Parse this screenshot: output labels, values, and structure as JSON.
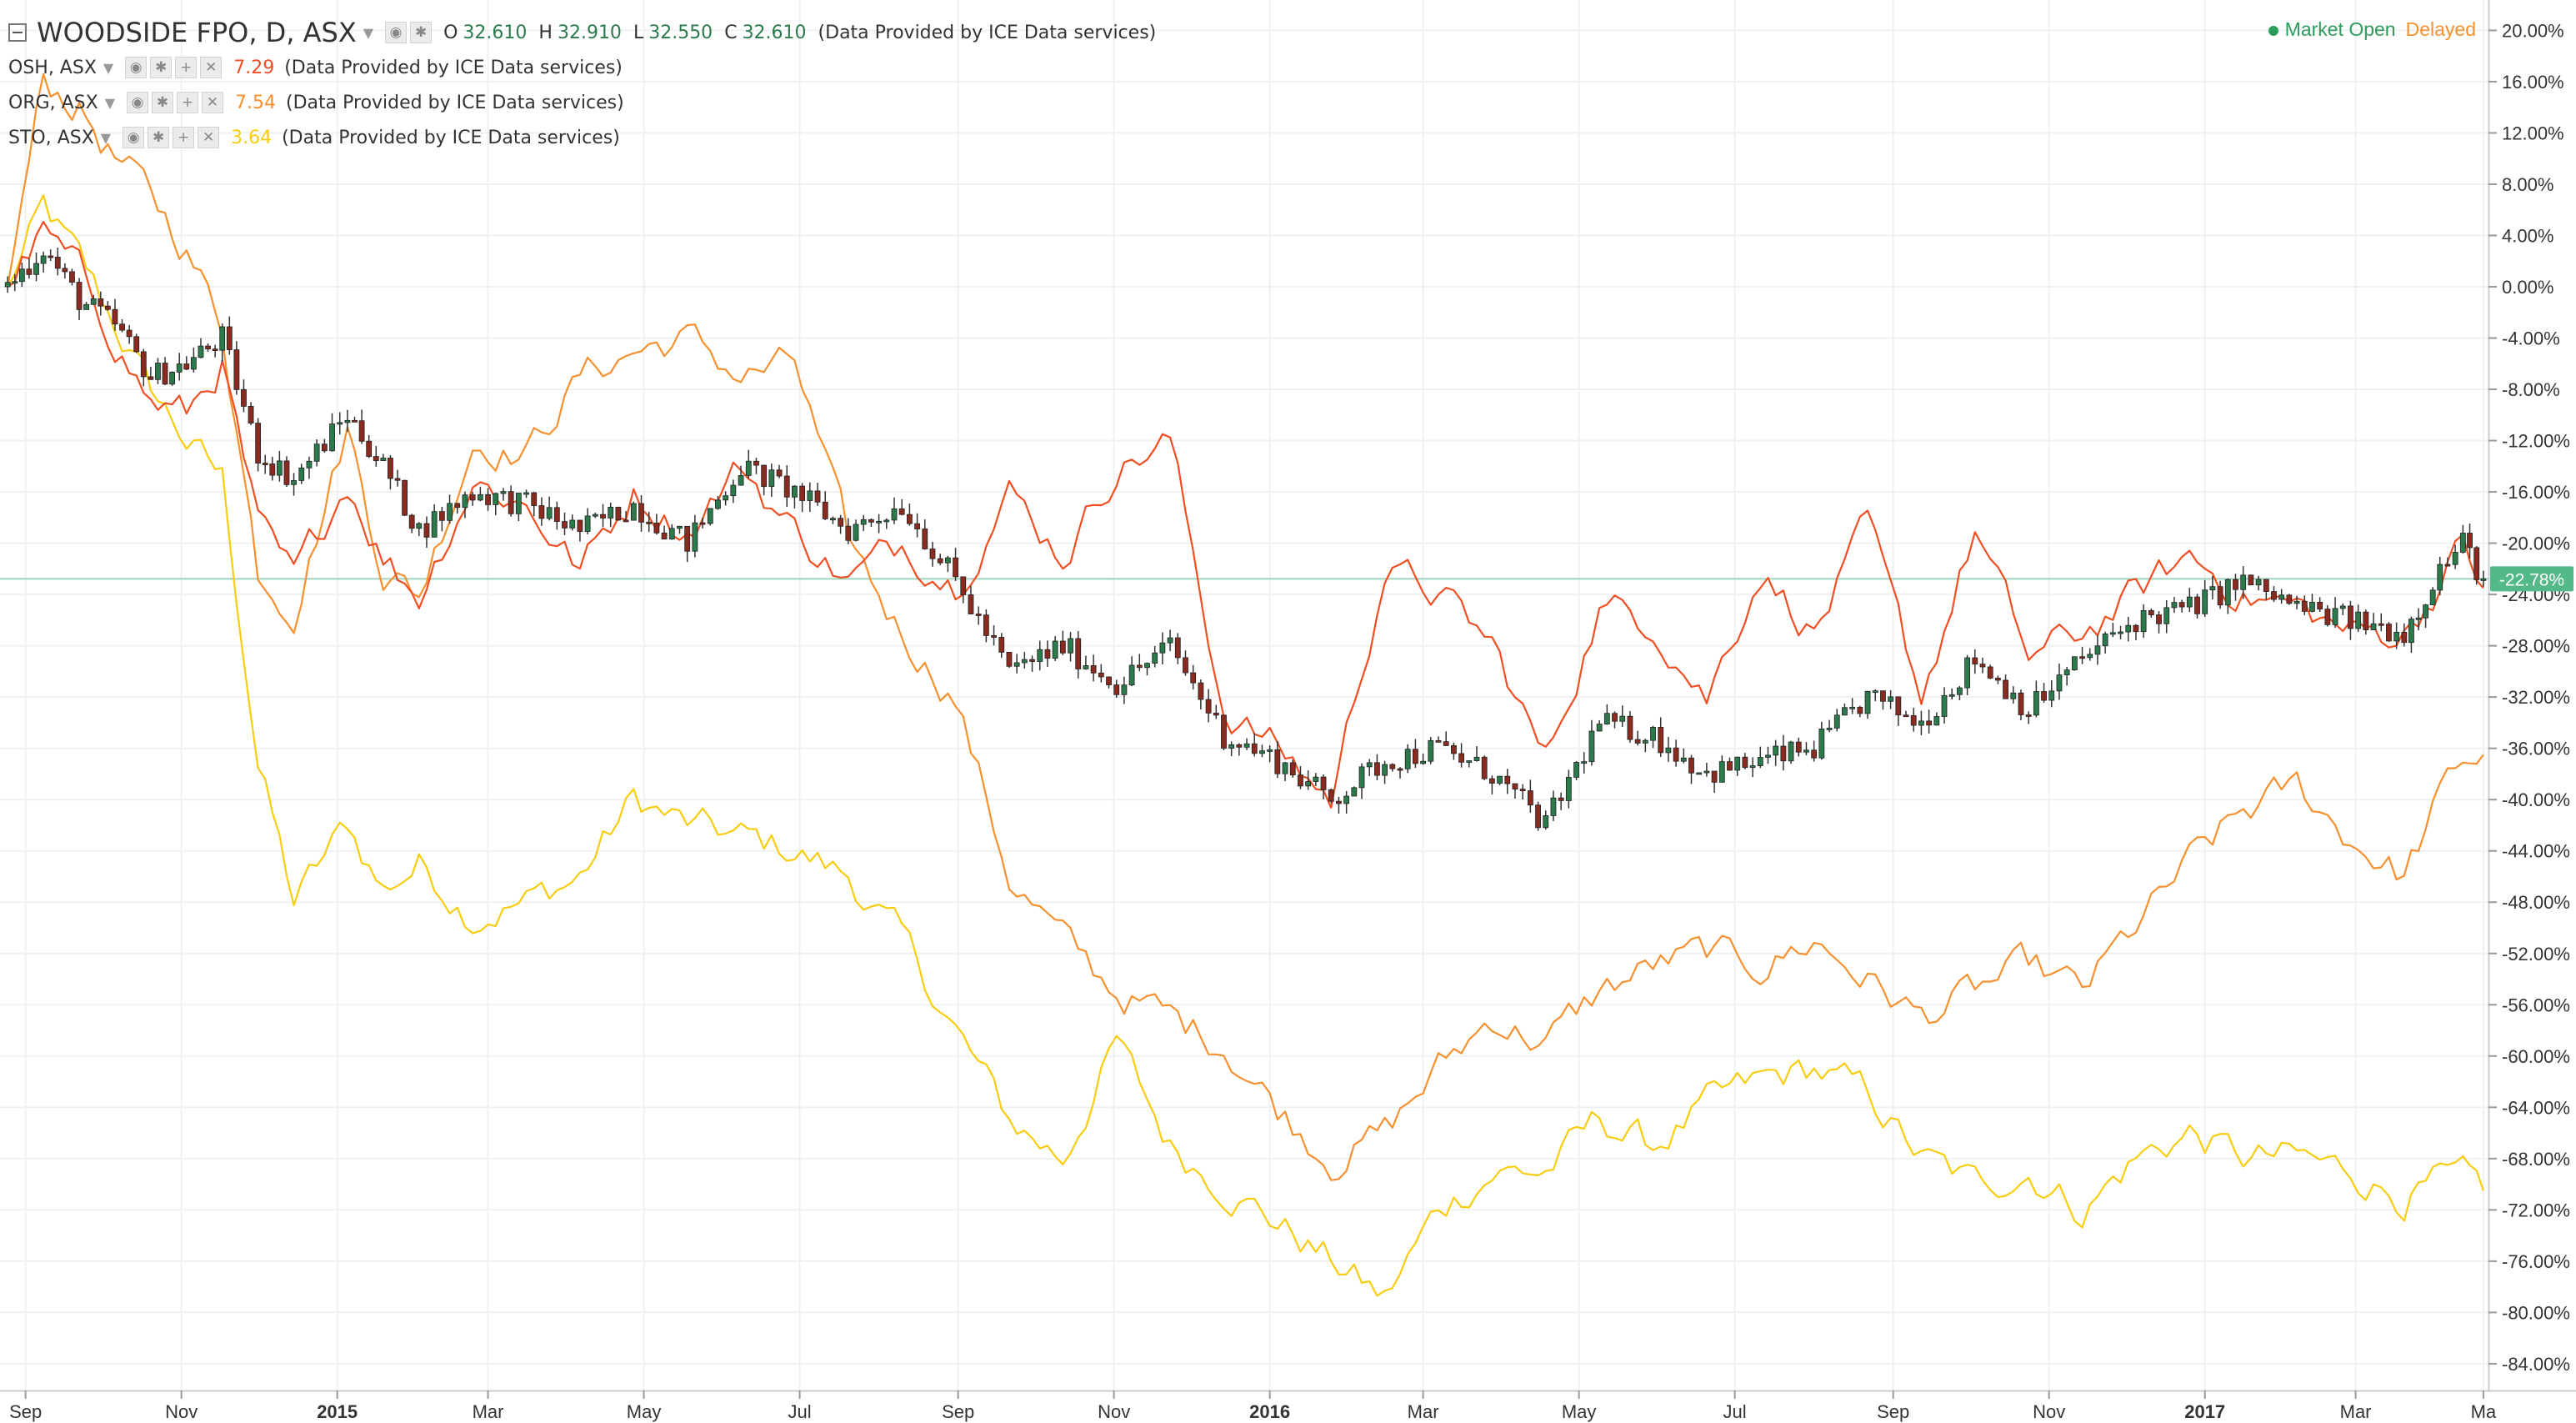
{
  "window": {
    "title": "WOODSIDE FPO, D, ASX"
  },
  "main_series": {
    "symbol": "WOODSIDE FPO, D, ASX",
    "ohlc": [
      {
        "label": "O",
        "value": "32.610"
      },
      {
        "label": "H",
        "value": "32.910"
      },
      {
        "label": "L",
        "value": "32.550"
      },
      {
        "label": "C",
        "value": "32.610"
      }
    ],
    "provider": "(Data Provided by ICE Data services)"
  },
  "compare": [
    {
      "symbol": "OSH, ASX",
      "value": "7.29",
      "color": "#f04e23",
      "provider": "(Data Provided by ICE Data services)"
    },
    {
      "symbol": "ORG, ASX",
      "value": "7.54",
      "color": "#f7902f",
      "provider": "(Data Provided by ICE Data services)"
    },
    {
      "symbol": "STO, ASX",
      "value": "3.64",
      "color": "#f8cd0f",
      "provider": "(Data Provided by ICE Data services)"
    }
  ],
  "status": {
    "market": "Market Open",
    "delay": "Delayed"
  },
  "icons": {
    "collapse": "collapse-icon",
    "eye": "eye-icon",
    "settings": "gear-icon",
    "add": "plus-icon",
    "close": "close-icon",
    "caret": "caret-down-icon"
  },
  "colors": {
    "up": "#2b7a4b",
    "down": "#8b2a1f",
    "badge": "#53b987",
    "grid": "#eef1f4",
    "axis_text": "#333333"
  },
  "chart_data": {
    "type": "line",
    "y_unit": "percent change",
    "ylim": [
      -86,
      22
    ],
    "y_ticks": [
      "20.00%",
      "16.00%",
      "12.00%",
      "8.00%",
      "4.00%",
      "0.00%",
      "-4.00%",
      "-8.00%",
      "-12.00%",
      "-16.00%",
      "-20.00%",
      "-24.00%",
      "-28.00%",
      "-32.00%",
      "-36.00%",
      "-40.00%",
      "-44.00%",
      "-48.00%",
      "-52.00%",
      "-56.00%",
      "-60.00%",
      "-64.00%",
      "-68.00%",
      "-72.00%",
      "-76.00%",
      "-80.00%",
      "-84.00%"
    ],
    "x_range": [
      "2014-08-22",
      "2017-04-22"
    ],
    "x_ticks": [
      {
        "label": "Sep",
        "date": "2014-09-01",
        "bold": false
      },
      {
        "label": "Nov",
        "date": "2014-11-01",
        "bold": false
      },
      {
        "label": "2015",
        "date": "2015-01-01",
        "bold": true
      },
      {
        "label": "Mar",
        "date": "2015-03-01",
        "bold": false
      },
      {
        "label": "May",
        "date": "2015-05-01",
        "bold": false
      },
      {
        "label": "Jul",
        "date": "2015-07-01",
        "bold": false
      },
      {
        "label": "Sep",
        "date": "2015-09-01",
        "bold": false
      },
      {
        "label": "Nov",
        "date": "2015-11-01",
        "bold": false
      },
      {
        "label": "2016",
        "date": "2016-01-01",
        "bold": true
      },
      {
        "label": "Mar",
        "date": "2016-03-01",
        "bold": false
      },
      {
        "label": "May",
        "date": "2016-05-01",
        "bold": false
      },
      {
        "label": "Jul",
        "date": "2016-07-01",
        "bold": false
      },
      {
        "label": "Sep",
        "date": "2016-09-01",
        "bold": false
      },
      {
        "label": "Nov",
        "date": "2016-11-01",
        "bold": false
      },
      {
        "label": "2017",
        "date": "2017-01-01",
        "bold": true
      },
      {
        "label": "Mar",
        "date": "2017-03-01",
        "bold": false
      },
      {
        "label": "Ma",
        "date": "2017-04-20",
        "bold": false
      }
    ],
    "current_badge": {
      "value": -22.78,
      "label": "-22.78%"
    },
    "series": [
      {
        "name": "WOODSIDE FPO",
        "style": "candles",
        "points": [
          [
            "2014-08-25",
            0
          ],
          [
            "2014-09-08",
            3
          ],
          [
            "2014-09-22",
            -1
          ],
          [
            "2014-10-06",
            -3
          ],
          [
            "2014-10-20",
            -7
          ],
          [
            "2014-11-03",
            -6
          ],
          [
            "2014-11-17",
            -4
          ],
          [
            "2014-12-01",
            -13
          ],
          [
            "2014-12-15",
            -15
          ],
          [
            "2015-01-05",
            -10
          ],
          [
            "2015-01-19",
            -14
          ],
          [
            "2015-02-02",
            -19
          ],
          [
            "2015-02-23",
            -16
          ],
          [
            "2015-03-16",
            -17
          ],
          [
            "2015-04-06",
            -19
          ],
          [
            "2015-04-27",
            -17
          ],
          [
            "2015-05-18",
            -20
          ],
          [
            "2015-06-08",
            -14
          ],
          [
            "2015-06-29",
            -16
          ],
          [
            "2015-07-20",
            -19
          ],
          [
            "2015-08-10",
            -17
          ],
          [
            "2015-08-31",
            -23
          ],
          [
            "2015-09-21",
            -30
          ],
          [
            "2015-10-12",
            -28
          ],
          [
            "2015-11-02",
            -31
          ],
          [
            "2015-11-23",
            -28
          ],
          [
            "2015-12-14",
            -35
          ],
          [
            "2016-01-04",
            -37
          ],
          [
            "2016-01-25",
            -40
          ],
          [
            "2016-02-15",
            -37
          ],
          [
            "2016-03-07",
            -36
          ],
          [
            "2016-03-28",
            -38
          ],
          [
            "2016-04-18",
            -42
          ],
          [
            "2016-05-09",
            -34
          ],
          [
            "2016-05-30",
            -35
          ],
          [
            "2016-06-20",
            -38
          ],
          [
            "2016-07-11",
            -37
          ],
          [
            "2016-08-01",
            -36
          ],
          [
            "2016-08-22",
            -32
          ],
          [
            "2016-09-12",
            -34
          ],
          [
            "2016-10-03",
            -29
          ],
          [
            "2016-10-24",
            -33
          ],
          [
            "2016-11-14",
            -29
          ],
          [
            "2016-12-05",
            -26
          ],
          [
            "2016-12-26",
            -25
          ],
          [
            "2017-01-16",
            -23
          ],
          [
            "2017-02-06",
            -25
          ],
          [
            "2017-02-27",
            -26
          ],
          [
            "2017-03-20",
            -27
          ],
          [
            "2017-04-03",
            -22
          ],
          [
            "2017-04-12",
            -20
          ],
          [
            "2017-04-20",
            -22.78
          ]
        ]
      },
      {
        "name": "OSH",
        "color": "#f04e23",
        "points": [
          [
            "2014-08-25",
            0
          ],
          [
            "2014-09-08",
            4
          ],
          [
            "2014-09-22",
            1
          ],
          [
            "2014-10-06",
            -4
          ],
          [
            "2014-10-20",
            -9
          ],
          [
            "2014-11-03",
            -10
          ],
          [
            "2014-11-17",
            -6
          ],
          [
            "2014-12-01",
            -19
          ],
          [
            "2014-12-15",
            -23
          ],
          [
            "2015-01-05",
            -15
          ],
          [
            "2015-01-19",
            -21
          ],
          [
            "2015-02-02",
            -24
          ],
          [
            "2015-02-23",
            -15
          ],
          [
            "2015-03-16",
            -17
          ],
          [
            "2015-04-06",
            -22
          ],
          [
            "2015-04-27",
            -16
          ],
          [
            "2015-05-18",
            -19
          ],
          [
            "2015-06-08",
            -14
          ],
          [
            "2015-06-29",
            -19
          ],
          [
            "2015-07-20",
            -23
          ],
          [
            "2015-08-10",
            -20
          ],
          [
            "2015-08-31",
            -23
          ],
          [
            "2015-09-21",
            -16
          ],
          [
            "2015-10-12",
            -21
          ],
          [
            "2015-11-02",
            -14
          ],
          [
            "2015-11-23",
            -12
          ],
          [
            "2015-12-14",
            -33
          ],
          [
            "2016-01-04",
            -36
          ],
          [
            "2016-01-25",
            -40
          ],
          [
            "2016-02-15",
            -22
          ],
          [
            "2016-03-07",
            -24
          ],
          [
            "2016-03-28",
            -28
          ],
          [
            "2016-04-18",
            -37
          ],
          [
            "2016-05-09",
            -25
          ],
          [
            "2016-05-30",
            -26
          ],
          [
            "2016-06-20",
            -32
          ],
          [
            "2016-07-11",
            -22
          ],
          [
            "2016-08-01",
            -27
          ],
          [
            "2016-08-22",
            -19
          ],
          [
            "2016-09-12",
            -32
          ],
          [
            "2016-10-03",
            -19
          ],
          [
            "2016-10-24",
            -29
          ],
          [
            "2016-11-14",
            -27
          ],
          [
            "2016-12-05",
            -24
          ],
          [
            "2016-12-26",
            -21
          ],
          [
            "2017-01-16",
            -24
          ],
          [
            "2017-02-06",
            -25
          ],
          [
            "2017-02-27",
            -27
          ],
          [
            "2017-03-20",
            -27
          ],
          [
            "2017-04-03",
            -23
          ],
          [
            "2017-04-12",
            -20
          ],
          [
            "2017-04-20",
            -23.5
          ]
        ]
      },
      {
        "name": "ORG",
        "color": "#f7902f",
        "points": [
          [
            "2014-08-25",
            0
          ],
          [
            "2014-09-08",
            16
          ],
          [
            "2014-09-22",
            14
          ],
          [
            "2014-10-06",
            10
          ],
          [
            "2014-10-20",
            7
          ],
          [
            "2014-11-03",
            3
          ],
          [
            "2014-11-17",
            -3
          ],
          [
            "2014-12-01",
            -22
          ],
          [
            "2014-12-15",
            -25
          ],
          [
            "2015-01-05",
            -11
          ],
          [
            "2015-01-19",
            -22
          ],
          [
            "2015-02-02",
            -24
          ],
          [
            "2015-02-23",
            -12
          ],
          [
            "2015-03-16",
            -13
          ],
          [
            "2015-04-06",
            -7
          ],
          [
            "2015-04-27",
            -5
          ],
          [
            "2015-05-18",
            -4
          ],
          [
            "2015-06-08",
            -7
          ],
          [
            "2015-06-29",
            -6
          ],
          [
            "2015-07-20",
            -20
          ],
          [
            "2015-08-10",
            -27
          ],
          [
            "2015-08-31",
            -32
          ],
          [
            "2015-09-21",
            -46
          ],
          [
            "2015-10-12",
            -51
          ],
          [
            "2015-11-02",
            -55
          ],
          [
            "2015-11-23",
            -57
          ],
          [
            "2015-12-14",
            -59
          ],
          [
            "2016-01-04",
            -64
          ],
          [
            "2016-01-25",
            -68
          ],
          [
            "2016-02-15",
            -66
          ],
          [
            "2016-03-07",
            -61
          ],
          [
            "2016-03-28",
            -57
          ],
          [
            "2016-04-18",
            -59
          ],
          [
            "2016-05-09",
            -55
          ],
          [
            "2016-05-30",
            -53
          ],
          [
            "2016-06-20",
            -52
          ],
          [
            "2016-07-11",
            -53
          ],
          [
            "2016-08-01",
            -51
          ],
          [
            "2016-08-22",
            -54
          ],
          [
            "2016-09-12",
            -57
          ],
          [
            "2016-10-03",
            -55
          ],
          [
            "2016-10-24",
            -53
          ],
          [
            "2016-11-14",
            -55
          ],
          [
            "2016-12-05",
            -50
          ],
          [
            "2016-12-26",
            -45
          ],
          [
            "2017-01-16",
            -41
          ],
          [
            "2017-02-06",
            -39
          ],
          [
            "2017-02-27",
            -43
          ],
          [
            "2017-03-20",
            -46
          ],
          [
            "2017-04-03",
            -40
          ],
          [
            "2017-04-12",
            -37
          ],
          [
            "2017-04-20",
            -36.5
          ]
        ]
      },
      {
        "name": "STO",
        "color": "#f8cd0f",
        "points": [
          [
            "2014-08-25",
            0
          ],
          [
            "2014-09-08",
            6
          ],
          [
            "2014-09-22",
            2
          ],
          [
            "2014-10-06",
            -3
          ],
          [
            "2014-10-20",
            -8
          ],
          [
            "2014-11-03",
            -12
          ],
          [
            "2014-11-17",
            -15
          ],
          [
            "2014-12-01",
            -37
          ],
          [
            "2014-12-15",
            -48
          ],
          [
            "2015-01-05",
            -42
          ],
          [
            "2015-01-19",
            -47
          ],
          [
            "2015-02-02",
            -45
          ],
          [
            "2015-02-23",
            -49
          ],
          [
            "2015-03-16",
            -48
          ],
          [
            "2015-04-06",
            -46
          ],
          [
            "2015-04-27",
            -40
          ],
          [
            "2015-05-18",
            -42
          ],
          [
            "2015-06-08",
            -43
          ],
          [
            "2015-06-29",
            -44
          ],
          [
            "2015-07-20",
            -46
          ],
          [
            "2015-08-10",
            -51
          ],
          [
            "2015-08-31",
            -58
          ],
          [
            "2015-09-21",
            -65
          ],
          [
            "2015-10-12",
            -68
          ],
          [
            "2015-11-02",
            -59
          ],
          [
            "2015-11-23",
            -67
          ],
          [
            "2015-12-14",
            -70
          ],
          [
            "2016-01-04",
            -73
          ],
          [
            "2016-01-25",
            -76
          ],
          [
            "2016-02-15",
            -79
          ],
          [
            "2016-03-07",
            -72
          ],
          [
            "2016-03-28",
            -69
          ],
          [
            "2016-04-18",
            -69
          ],
          [
            "2016-05-09",
            -65
          ],
          [
            "2016-05-30",
            -67
          ],
          [
            "2016-06-20",
            -64
          ],
          [
            "2016-07-11",
            -62
          ],
          [
            "2016-08-01",
            -61
          ],
          [
            "2016-08-22",
            -63
          ],
          [
            "2016-09-12",
            -68
          ],
          [
            "2016-10-03",
            -70
          ],
          [
            "2016-10-24",
            -69
          ],
          [
            "2016-11-14",
            -72
          ],
          [
            "2016-12-05",
            -68
          ],
          [
            "2016-12-26",
            -66
          ],
          [
            "2017-01-16",
            -68
          ],
          [
            "2017-02-06",
            -68
          ],
          [
            "2017-02-27",
            -69
          ],
          [
            "2017-03-20",
            -71
          ],
          [
            "2017-04-03",
            -70
          ],
          [
            "2017-04-12",
            -70
          ],
          [
            "2017-04-20",
            -70.5
          ]
        ]
      }
    ]
  }
}
